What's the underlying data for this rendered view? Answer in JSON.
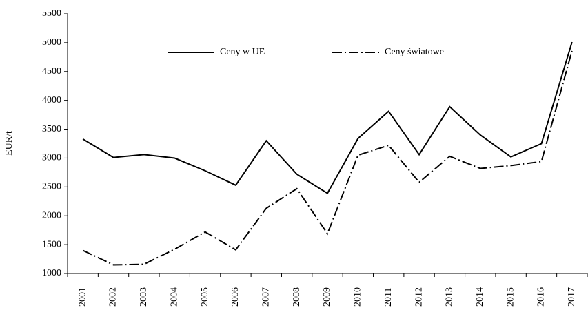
{
  "chart_data": {
    "type": "line",
    "y_label": "EUR/t",
    "categories": [
      "2001",
      "2002",
      "2003",
      "2004",
      "2005",
      "2006",
      "2007",
      "2008",
      "2009",
      "2010",
      "2011",
      "2012",
      "2013",
      "2014",
      "2015",
      "2016",
      "2017"
    ],
    "series": [
      {
        "name": "Ceny w UE",
        "color": "#000000",
        "style": "solid",
        "values": [
          3330,
          3010,
          3060,
          3000,
          2780,
          2530,
          3300,
          2720,
          2390,
          3340,
          3810,
          3060,
          3890,
          3400,
          3020,
          3250,
          5010
        ]
      },
      {
        "name": "Ceny światowe",
        "color": "#000000",
        "style": "dashdot",
        "values": [
          1400,
          1150,
          1160,
          1420,
          1720,
          1410,
          2130,
          2470,
          1690,
          3050,
          3220,
          2580,
          3030,
          2820,
          2870,
          2940,
          4860
        ]
      }
    ],
    "ylim": [
      1000,
      5500
    ],
    "yticks": [
      1000,
      1500,
      2000,
      2500,
      3000,
      3500,
      4000,
      4500,
      5000,
      5500
    ],
    "legend": "top",
    "grid": false
  }
}
